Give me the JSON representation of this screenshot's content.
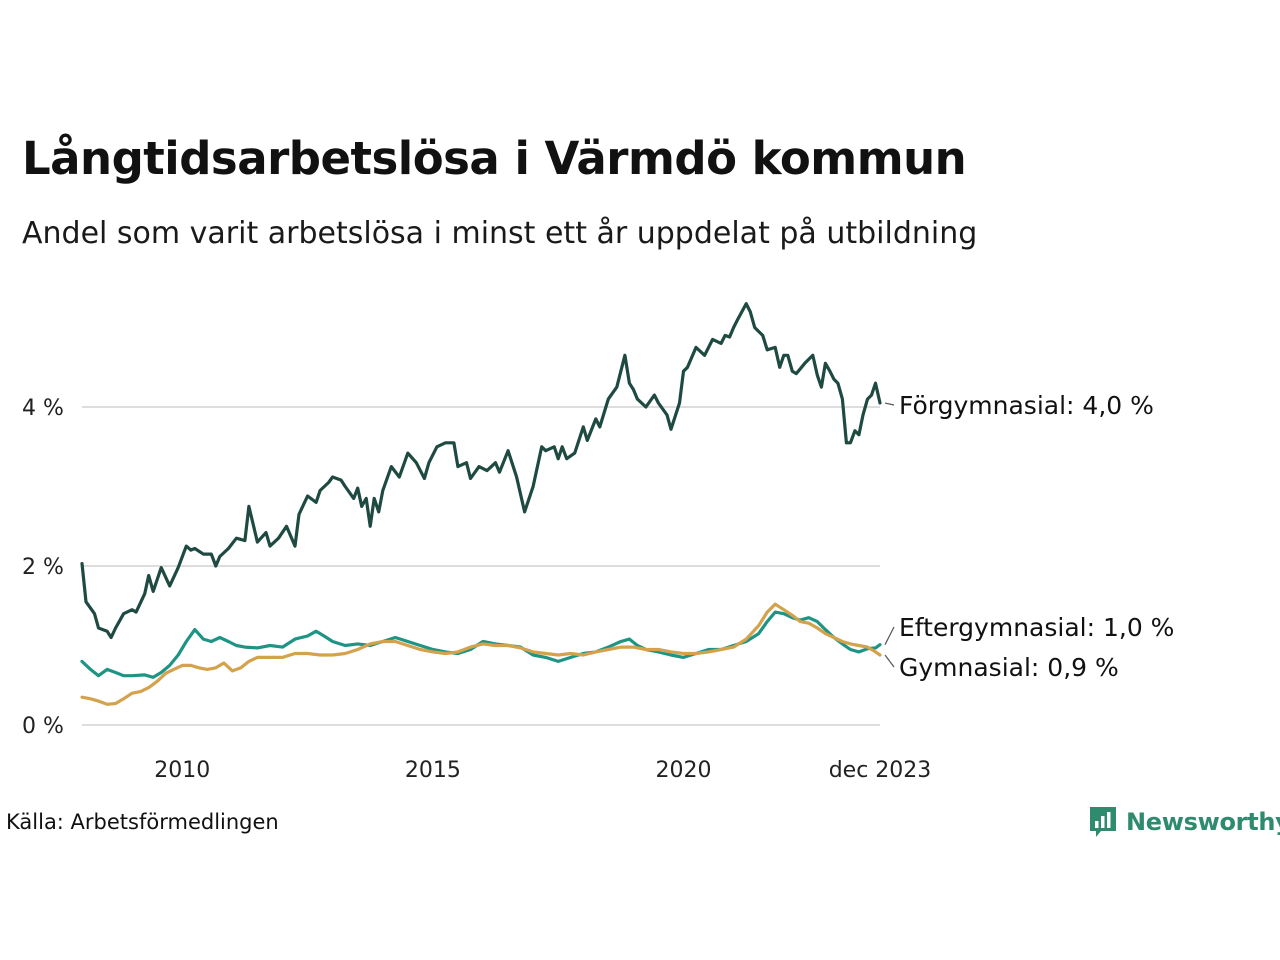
{
  "title": "Långtidsarbetslösa i Värmdö kommun",
  "subtitle": "Andel som varit arbetslösa i minst ett år uppdelat på utbildning",
  "source": "Källa: Arbetsförmedlingen",
  "brand": "Newsworthy",
  "colors": {
    "forgymnasial": "#1f4a41",
    "eftergymnasial": "#1e9484",
    "gymnasial": "#d4a24c",
    "grid": "#dddddd",
    "brand": "#2e8b6e"
  },
  "chart_data": {
    "type": "line",
    "title": "Långtidsarbetslösa i Värmdö kommun",
    "xlabel": "",
    "ylabel": "",
    "xlim": [
      2008.0,
      2023.92
    ],
    "ylim": [
      0,
      5.5
    ],
    "y_ticks": [
      {
        "value": 0,
        "label": "0 %"
      },
      {
        "value": 2,
        "label": "2 %"
      },
      {
        "value": 4,
        "label": "4 %"
      }
    ],
    "x_ticks": [
      {
        "value": 2010,
        "label": "2010"
      },
      {
        "value": 2015,
        "label": "2015"
      },
      {
        "value": 2020,
        "label": "2020"
      },
      {
        "value": 2023.92,
        "label": "dec 2023"
      }
    ],
    "series": [
      {
        "name": "Förgymnasial",
        "label": "Förgymnasial: 4,0 %",
        "points": [
          [
            2008.0,
            2.03
          ],
          [
            2008.08,
            1.55
          ],
          [
            2008.25,
            1.4
          ],
          [
            2008.33,
            1.22
          ],
          [
            2008.5,
            1.18
          ],
          [
            2008.58,
            1.1
          ],
          [
            2008.67,
            1.22
          ],
          [
            2008.83,
            1.4
          ],
          [
            2009.0,
            1.45
          ],
          [
            2009.08,
            1.42
          ],
          [
            2009.25,
            1.65
          ],
          [
            2009.33,
            1.88
          ],
          [
            2009.42,
            1.68
          ],
          [
            2009.58,
            1.98
          ],
          [
            2009.75,
            1.75
          ],
          [
            2009.92,
            1.98
          ],
          [
            2010.08,
            2.25
          ],
          [
            2010.17,
            2.2
          ],
          [
            2010.25,
            2.22
          ],
          [
            2010.42,
            2.15
          ],
          [
            2010.58,
            2.15
          ],
          [
            2010.67,
            2.0
          ],
          [
            2010.75,
            2.12
          ],
          [
            2010.92,
            2.22
          ],
          [
            2011.08,
            2.35
          ],
          [
            2011.25,
            2.32
          ],
          [
            2011.33,
            2.75
          ],
          [
            2011.5,
            2.3
          ],
          [
            2011.67,
            2.42
          ],
          [
            2011.75,
            2.25
          ],
          [
            2011.92,
            2.35
          ],
          [
            2012.08,
            2.5
          ],
          [
            2012.25,
            2.25
          ],
          [
            2012.33,
            2.65
          ],
          [
            2012.5,
            2.88
          ],
          [
            2012.67,
            2.8
          ],
          [
            2012.75,
            2.95
          ],
          [
            2012.92,
            3.05
          ],
          [
            2013.0,
            3.12
          ],
          [
            2013.17,
            3.08
          ],
          [
            2013.25,
            3.0
          ],
          [
            2013.42,
            2.85
          ],
          [
            2013.5,
            2.98
          ],
          [
            2013.58,
            2.75
          ],
          [
            2013.67,
            2.85
          ],
          [
            2013.75,
            2.5
          ],
          [
            2013.83,
            2.85
          ],
          [
            2013.92,
            2.68
          ],
          [
            2014.0,
            2.95
          ],
          [
            2014.17,
            3.25
          ],
          [
            2014.33,
            3.12
          ],
          [
            2014.5,
            3.42
          ],
          [
            2014.67,
            3.3
          ],
          [
            2014.83,
            3.1
          ],
          [
            2014.92,
            3.3
          ],
          [
            2015.08,
            3.5
          ],
          [
            2015.25,
            3.55
          ],
          [
            2015.42,
            3.55
          ],
          [
            2015.5,
            3.25
          ],
          [
            2015.67,
            3.3
          ],
          [
            2015.75,
            3.1
          ],
          [
            2015.92,
            3.25
          ],
          [
            2016.08,
            3.2
          ],
          [
            2016.25,
            3.3
          ],
          [
            2016.33,
            3.18
          ],
          [
            2016.5,
            3.45
          ],
          [
            2016.67,
            3.12
          ],
          [
            2016.83,
            2.68
          ],
          [
            2017.0,
            3.0
          ],
          [
            2017.17,
            3.5
          ],
          [
            2017.25,
            3.45
          ],
          [
            2017.42,
            3.5
          ],
          [
            2017.5,
            3.35
          ],
          [
            2017.58,
            3.5
          ],
          [
            2017.67,
            3.35
          ],
          [
            2017.83,
            3.42
          ],
          [
            2018.0,
            3.75
          ],
          [
            2018.08,
            3.58
          ],
          [
            2018.25,
            3.85
          ],
          [
            2018.33,
            3.75
          ],
          [
            2018.5,
            4.1
          ],
          [
            2018.67,
            4.25
          ],
          [
            2018.83,
            4.65
          ],
          [
            2018.92,
            4.3
          ],
          [
            2019.0,
            4.22
          ],
          [
            2019.08,
            4.1
          ],
          [
            2019.25,
            4.0
          ],
          [
            2019.42,
            4.15
          ],
          [
            2019.5,
            4.05
          ],
          [
            2019.67,
            3.9
          ],
          [
            2019.75,
            3.72
          ],
          [
            2019.92,
            4.05
          ],
          [
            2020.0,
            4.45
          ],
          [
            2020.08,
            4.5
          ],
          [
            2020.25,
            4.75
          ],
          [
            2020.42,
            4.65
          ],
          [
            2020.58,
            4.85
          ],
          [
            2020.75,
            4.8
          ],
          [
            2020.83,
            4.9
          ],
          [
            2020.92,
            4.88
          ],
          [
            2021.0,
            5.0
          ],
          [
            2021.08,
            5.1
          ],
          [
            2021.25,
            5.3
          ],
          [
            2021.33,
            5.2
          ],
          [
            2021.42,
            5.0
          ],
          [
            2021.5,
            4.95
          ],
          [
            2021.58,
            4.9
          ],
          [
            2021.67,
            4.72
          ],
          [
            2021.83,
            4.75
          ],
          [
            2021.92,
            4.5
          ],
          [
            2022.0,
            4.65
          ],
          [
            2022.08,
            4.65
          ],
          [
            2022.17,
            4.45
          ],
          [
            2022.25,
            4.42
          ],
          [
            2022.42,
            4.55
          ],
          [
            2022.58,
            4.65
          ],
          [
            2022.67,
            4.4
          ],
          [
            2022.75,
            4.25
          ],
          [
            2022.83,
            4.55
          ],
          [
            2022.92,
            4.45
          ],
          [
            2023.0,
            4.35
          ],
          [
            2023.08,
            4.3
          ],
          [
            2023.17,
            4.1
          ],
          [
            2023.25,
            3.55
          ],
          [
            2023.33,
            3.55
          ],
          [
            2023.42,
            3.7
          ],
          [
            2023.5,
            3.65
          ],
          [
            2023.58,
            3.9
          ],
          [
            2023.67,
            4.1
          ],
          [
            2023.75,
            4.15
          ],
          [
            2023.83,
            4.3
          ],
          [
            2023.92,
            4.05
          ]
        ]
      },
      {
        "name": "Eftergymnasial",
        "label": "Eftergymnasial: 1,0 %",
        "points": [
          [
            2008.0,
            0.8
          ],
          [
            2008.17,
            0.7
          ],
          [
            2008.33,
            0.62
          ],
          [
            2008.5,
            0.7
          ],
          [
            2008.67,
            0.66
          ],
          [
            2008.83,
            0.62
          ],
          [
            2009.0,
            0.62
          ],
          [
            2009.25,
            0.63
          ],
          [
            2009.42,
            0.6
          ],
          [
            2009.58,
            0.66
          ],
          [
            2009.75,
            0.75
          ],
          [
            2009.92,
            0.88
          ],
          [
            2010.08,
            1.05
          ],
          [
            2010.25,
            1.2
          ],
          [
            2010.42,
            1.08
          ],
          [
            2010.58,
            1.05
          ],
          [
            2010.75,
            1.1
          ],
          [
            2010.92,
            1.05
          ],
          [
            2011.08,
            1.0
          ],
          [
            2011.25,
            0.98
          ],
          [
            2011.5,
            0.97
          ],
          [
            2011.75,
            1.0
          ],
          [
            2012.0,
            0.98
          ],
          [
            2012.25,
            1.08
          ],
          [
            2012.5,
            1.12
          ],
          [
            2012.67,
            1.18
          ],
          [
            2012.83,
            1.12
          ],
          [
            2013.0,
            1.05
          ],
          [
            2013.25,
            1.0
          ],
          [
            2013.5,
            1.02
          ],
          [
            2013.75,
            1.0
          ],
          [
            2014.0,
            1.05
          ],
          [
            2014.25,
            1.1
          ],
          [
            2014.5,
            1.05
          ],
          [
            2014.75,
            1.0
          ],
          [
            2015.0,
            0.95
          ],
          [
            2015.25,
            0.92
          ],
          [
            2015.5,
            0.9
          ],
          [
            2015.75,
            0.95
          ],
          [
            2016.0,
            1.05
          ],
          [
            2016.25,
            1.02
          ],
          [
            2016.5,
            1.0
          ],
          [
            2016.75,
            0.98
          ],
          [
            2017.0,
            0.88
          ],
          [
            2017.25,
            0.85
          ],
          [
            2017.5,
            0.8
          ],
          [
            2017.75,
            0.85
          ],
          [
            2018.0,
            0.9
          ],
          [
            2018.25,
            0.92
          ],
          [
            2018.5,
            0.98
          ],
          [
            2018.75,
            1.05
          ],
          [
            2018.92,
            1.08
          ],
          [
            2019.08,
            1.0
          ],
          [
            2019.25,
            0.95
          ],
          [
            2019.5,
            0.92
          ],
          [
            2019.75,
            0.88
          ],
          [
            2020.0,
            0.85
          ],
          [
            2020.25,
            0.9
          ],
          [
            2020.5,
            0.95
          ],
          [
            2020.75,
            0.95
          ],
          [
            2021.0,
            1.0
          ],
          [
            2021.25,
            1.05
          ],
          [
            2021.5,
            1.15
          ],
          [
            2021.67,
            1.3
          ],
          [
            2021.83,
            1.42
          ],
          [
            2022.0,
            1.4
          ],
          [
            2022.17,
            1.35
          ],
          [
            2022.33,
            1.32
          ],
          [
            2022.5,
            1.35
          ],
          [
            2022.67,
            1.3
          ],
          [
            2022.83,
            1.2
          ],
          [
            2023.0,
            1.1
          ],
          [
            2023.17,
            1.02
          ],
          [
            2023.33,
            0.95
          ],
          [
            2023.5,
            0.92
          ],
          [
            2023.67,
            0.96
          ],
          [
            2023.83,
            0.97
          ],
          [
            2023.92,
            1.01
          ]
        ]
      },
      {
        "name": "Gymnasial",
        "label": "Gymnasial: 0,9 %",
        "points": [
          [
            2008.0,
            0.35
          ],
          [
            2008.17,
            0.33
          ],
          [
            2008.33,
            0.3
          ],
          [
            2008.5,
            0.26
          ],
          [
            2008.67,
            0.27
          ],
          [
            2008.83,
            0.33
          ],
          [
            2009.0,
            0.4
          ],
          [
            2009.17,
            0.42
          ],
          [
            2009.33,
            0.47
          ],
          [
            2009.5,
            0.55
          ],
          [
            2009.67,
            0.65
          ],
          [
            2009.83,
            0.7
          ],
          [
            2010.0,
            0.75
          ],
          [
            2010.17,
            0.75
          ],
          [
            2010.33,
            0.72
          ],
          [
            2010.5,
            0.7
          ],
          [
            2010.67,
            0.72
          ],
          [
            2010.83,
            0.78
          ],
          [
            2011.0,
            0.68
          ],
          [
            2011.17,
            0.72
          ],
          [
            2011.33,
            0.8
          ],
          [
            2011.5,
            0.85
          ],
          [
            2011.75,
            0.85
          ],
          [
            2012.0,
            0.85
          ],
          [
            2012.25,
            0.9
          ],
          [
            2012.5,
            0.9
          ],
          [
            2012.75,
            0.88
          ],
          [
            2013.0,
            0.88
          ],
          [
            2013.25,
            0.9
          ],
          [
            2013.5,
            0.95
          ],
          [
            2013.75,
            1.02
          ],
          [
            2014.0,
            1.05
          ],
          [
            2014.25,
            1.05
          ],
          [
            2014.5,
            1.0
          ],
          [
            2014.75,
            0.95
          ],
          [
            2015.0,
            0.92
          ],
          [
            2015.25,
            0.9
          ],
          [
            2015.5,
            0.92
          ],
          [
            2015.75,
            0.98
          ],
          [
            2016.0,
            1.02
          ],
          [
            2016.25,
            1.0
          ],
          [
            2016.5,
            1.0
          ],
          [
            2016.75,
            0.97
          ],
          [
            2017.0,
            0.92
          ],
          [
            2017.25,
            0.9
          ],
          [
            2017.5,
            0.88
          ],
          [
            2017.75,
            0.9
          ],
          [
            2018.0,
            0.88
          ],
          [
            2018.25,
            0.92
          ],
          [
            2018.5,
            0.95
          ],
          [
            2018.75,
            0.98
          ],
          [
            2019.0,
            0.98
          ],
          [
            2019.25,
            0.95
          ],
          [
            2019.5,
            0.95
          ],
          [
            2019.75,
            0.92
          ],
          [
            2020.0,
            0.9
          ],
          [
            2020.25,
            0.9
          ],
          [
            2020.5,
            0.92
          ],
          [
            2020.75,
            0.95
          ],
          [
            2021.0,
            0.98
          ],
          [
            2021.25,
            1.08
          ],
          [
            2021.5,
            1.25
          ],
          [
            2021.67,
            1.42
          ],
          [
            2021.83,
            1.52
          ],
          [
            2022.0,
            1.45
          ],
          [
            2022.17,
            1.38
          ],
          [
            2022.33,
            1.3
          ],
          [
            2022.5,
            1.28
          ],
          [
            2022.67,
            1.22
          ],
          [
            2022.83,
            1.15
          ],
          [
            2023.0,
            1.1
          ],
          [
            2023.17,
            1.05
          ],
          [
            2023.33,
            1.02
          ],
          [
            2023.5,
            1.0
          ],
          [
            2023.67,
            0.98
          ],
          [
            2023.83,
            0.92
          ],
          [
            2023.92,
            0.88
          ]
        ]
      }
    ]
  }
}
